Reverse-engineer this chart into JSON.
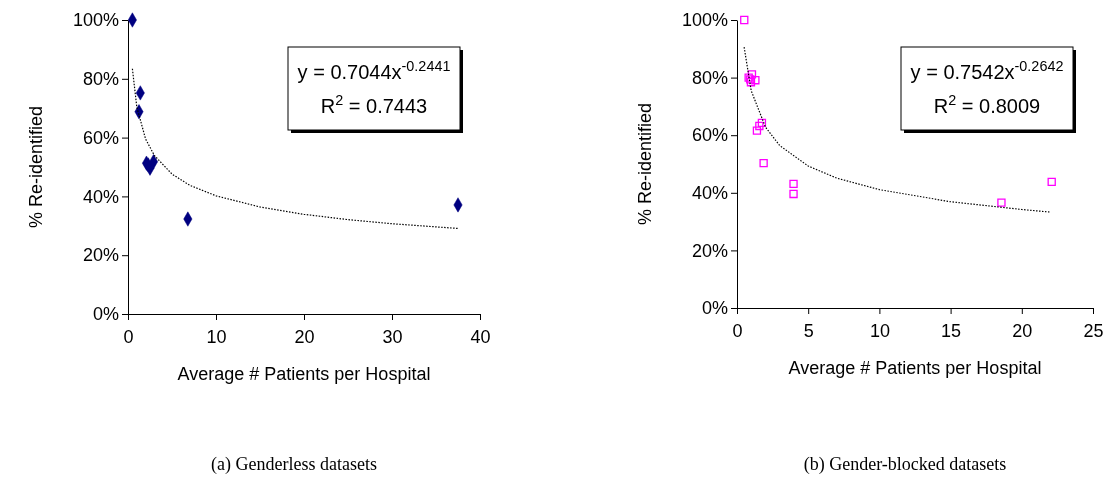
{
  "chart_data": [
    {
      "type": "scatter",
      "xlabel": "Average #  Patients per Hospital",
      "ylabel": "% Re-identified",
      "xlim": [
        0,
        40
      ],
      "xticks": [
        0,
        10,
        20,
        30,
        40
      ],
      "ylim": [
        0,
        100
      ],
      "yticks": [
        {
          "value": 0,
          "label": "0%"
        },
        {
          "value": 20,
          "label": "20%"
        },
        {
          "value": 40,
          "label": "40%"
        },
        {
          "value": 60,
          "label": "60%"
        },
        {
          "value": 80,
          "label": "80%"
        },
        {
          "value": 100,
          "label": "100%"
        }
      ],
      "grid": false,
      "series": [
        {
          "marker": "diamond",
          "color": "#000080",
          "x": [
            0.5,
            1.4,
            1.25,
            2.1,
            2.5,
            2.9,
            2.3,
            6.8,
            37.5
          ],
          "values": [
            100,
            75.2,
            68.8,
            51.3,
            49.6,
            51.8,
            50.7,
            32.3,
            37.1
          ]
        },
        {
          "type": "line",
          "marker": "none",
          "line_style": "dotted",
          "color": "#000000",
          "x": [
            0.5,
            1,
            2,
            3,
            5,
            7,
            10,
            15,
            20,
            25,
            30,
            37.5
          ],
          "values": [
            83.4,
            70.4,
            59.5,
            53.9,
            47.6,
            43.8,
            40.2,
            36.4,
            33.9,
            32.1,
            30.7,
            29.1
          ]
        }
      ],
      "annotations": [
        "y = 0.7044x$^{-0.2441}$",
        "R$^{2}$ = 0.7443",
        "(a) Genderless datasets"
      ]
    },
    {
      "type": "scatter",
      "xlabel": "Average # Patients per Hospital",
      "ylabel": "% Re-identified",
      "xlim": [
        0,
        25
      ],
      "xticks": [
        0,
        5,
        10,
        15,
        20,
        25
      ],
      "ylim": [
        0,
        100
      ],
      "yticks": [
        {
          "value": 0,
          "label": "0%"
        },
        {
          "value": 20,
          "label": "20%"
        },
        {
          "value": 40,
          "label": "40%"
        },
        {
          "value": 60,
          "label": "60%"
        },
        {
          "value": 80,
          "label": "80%"
        },
        {
          "value": 100,
          "label": "100%"
        }
      ],
      "grid": false,
      "series": [
        {
          "marker": "square",
          "color": "#ff00ff",
          "x": [
            0.51,
            0.82,
            1.05,
            0.98,
            1.29,
            0.93,
            1.75,
            1.57,
            1.4,
            1.87,
            3.97,
            3.97,
            18.57,
            22.1
          ],
          "values": [
            100,
            80,
            81.1,
            78.4,
            79.1,
            79.4,
            64.3,
            63.2,
            61.6,
            50.3,
            43.1,
            39.6,
            36.6,
            43.8
          ]
        },
        {
          "type": "line",
          "marker": "none",
          "line_style": "dotted",
          "color": "#000000",
          "x": [
            0.5,
            1,
            2,
            3,
            5,
            7,
            10,
            15,
            20,
            22
          ],
          "values": [
            90.6,
            75.4,
            62.8,
            56.4,
            49.3,
            45.1,
            41.1,
            36.9,
            34.2,
            33.3
          ]
        }
      ],
      "annotations": [
        "y = 0.7542x$^{-0.2642}$",
        "R$^{2}$ = 0.8009",
        "(b) Gender-blocked datasets"
      ]
    }
  ]
}
